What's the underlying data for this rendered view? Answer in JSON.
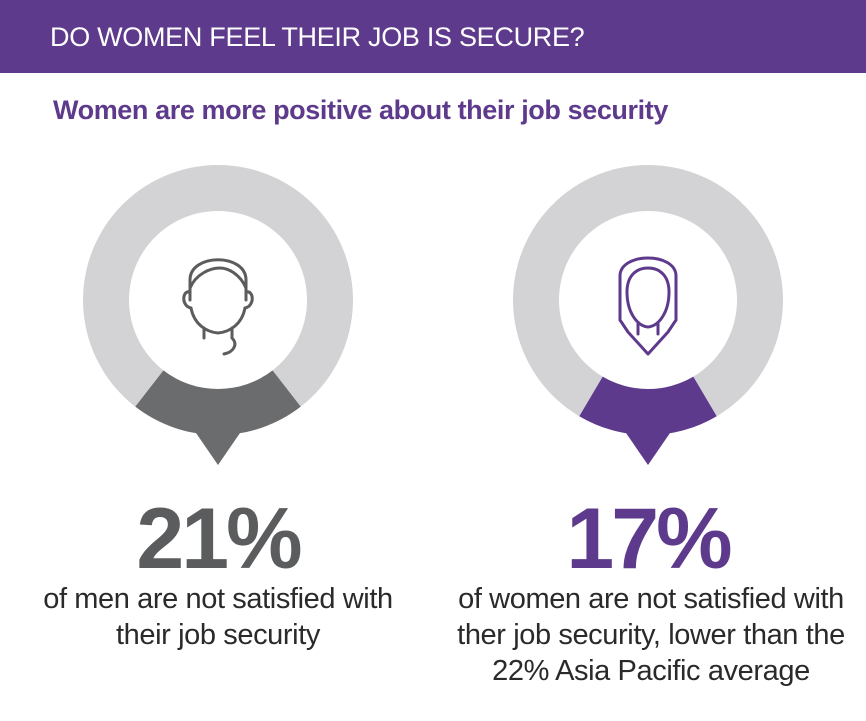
{
  "header": {
    "title": "DO WOMEN FEEL THEIR JOB IS SECURE?"
  },
  "subtitle": "Women are more positive about their job security",
  "colors": {
    "purple": "#5e3a8c",
    "dark_gray": "#6b6c6e",
    "ring_gray": "#d3d3d5",
    "text": "#2a2a2a"
  },
  "chart_data": [
    {
      "type": "pie",
      "series": [
        {
          "label": "men not satisfied",
          "value": 21,
          "color": "#6b6c6e"
        },
        {
          "label": "other",
          "value": 79,
          "color": "#d3d3d5"
        }
      ],
      "icon": "man-icon",
      "value_text": "21%",
      "caption_lines": [
        "of men are not satisfied with",
        "their job security"
      ]
    },
    {
      "type": "pie",
      "series": [
        {
          "label": "women not satisfied",
          "value": 17,
          "color": "#5e3a8c"
        },
        {
          "label": "other",
          "value": 83,
          "color": "#d3d3d5"
        }
      ],
      "icon": "woman-icon",
      "value_text": "17%",
      "caption_lines": [
        "of women are not satisfied with",
        "ther job security, lower than the",
        "22% Asia Pacific average"
      ]
    }
  ]
}
